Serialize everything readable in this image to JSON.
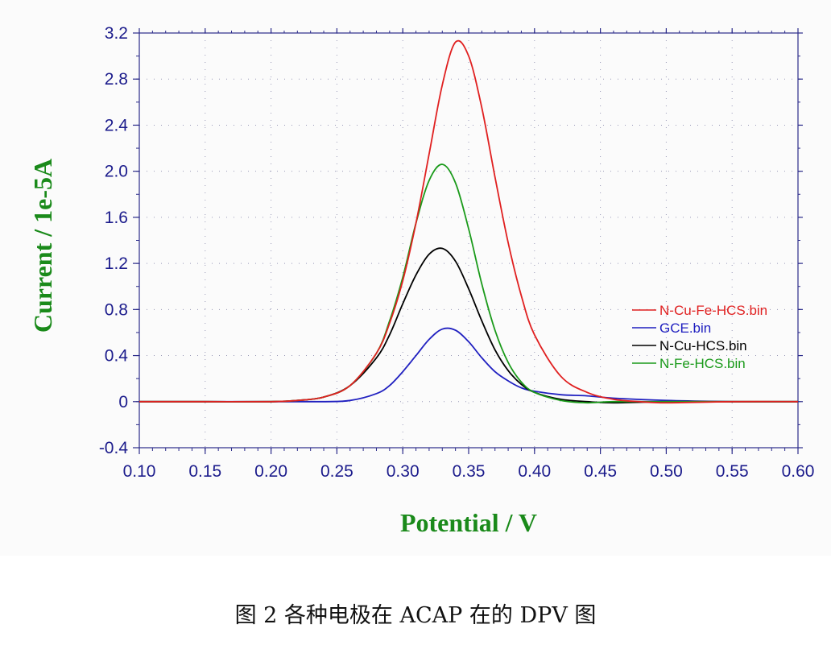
{
  "chart_data": {
    "type": "line",
    "xlabel": "Potential / V",
    "ylabel": "Current / 1e-5A",
    "xlim": [
      0.1,
      0.6
    ],
    "ylim": [
      -0.4,
      3.2
    ],
    "x_ticks": [
      "0.10",
      "0.15",
      "0.20",
      "0.25",
      "0.30",
      "0.35",
      "0.40",
      "0.45",
      "0.50",
      "0.55",
      "0.60"
    ],
    "y_ticks": [
      "-0.4",
      "0",
      "0.4",
      "0.8",
      "1.2",
      "1.6",
      "2.0",
      "2.4",
      "2.8",
      "3.2"
    ],
    "grid": true,
    "legend_position": "right",
    "series": [
      {
        "name": "N-Cu-Fe-HCS.bin",
        "color": "#e02020",
        "x": [
          0.1,
          0.15,
          0.2,
          0.22,
          0.24,
          0.26,
          0.28,
          0.29,
          0.3,
          0.31,
          0.32,
          0.33,
          0.34,
          0.35,
          0.36,
          0.37,
          0.38,
          0.39,
          0.4,
          0.42,
          0.44,
          0.46,
          0.48,
          0.5,
          0.55,
          0.6
        ],
        "y": [
          0.0,
          0.0,
          0.0,
          0.01,
          0.04,
          0.14,
          0.42,
          0.68,
          1.05,
          1.55,
          2.15,
          2.75,
          3.12,
          3.0,
          2.55,
          1.95,
          1.38,
          0.92,
          0.58,
          0.22,
          0.08,
          0.02,
          0.0,
          -0.01,
          0.0,
          0.0
        ]
      },
      {
        "name": "GCE.bin",
        "color": "#2020c0",
        "x": [
          0.1,
          0.15,
          0.2,
          0.24,
          0.26,
          0.28,
          0.29,
          0.3,
          0.31,
          0.32,
          0.33,
          0.34,
          0.35,
          0.36,
          0.37,
          0.38,
          0.39,
          0.4,
          0.42,
          0.44,
          0.46,
          0.5,
          0.55,
          0.6
        ],
        "y": [
          0.0,
          0.0,
          0.0,
          0.0,
          0.01,
          0.07,
          0.14,
          0.26,
          0.4,
          0.54,
          0.63,
          0.62,
          0.52,
          0.38,
          0.26,
          0.18,
          0.12,
          0.09,
          0.06,
          0.05,
          0.03,
          0.01,
          0.0,
          0.0
        ]
      },
      {
        "name": "N-Cu-HCS.bin",
        "color": "#000000",
        "x": [
          0.1,
          0.15,
          0.2,
          0.22,
          0.24,
          0.26,
          0.28,
          0.29,
          0.3,
          0.31,
          0.32,
          0.33,
          0.34,
          0.35,
          0.36,
          0.37,
          0.38,
          0.39,
          0.4,
          0.42,
          0.44,
          0.46,
          0.5,
          0.55,
          0.6
        ],
        "y": [
          0.0,
          0.0,
          0.0,
          0.01,
          0.04,
          0.14,
          0.38,
          0.58,
          0.85,
          1.1,
          1.28,
          1.33,
          1.22,
          0.98,
          0.7,
          0.45,
          0.27,
          0.15,
          0.08,
          0.02,
          0.0,
          -0.01,
          0.0,
          0.0,
          0.0
        ]
      },
      {
        "name": "N-Fe-HCS.bin",
        "color": "#1a9a1a",
        "x": [
          0.1,
          0.15,
          0.2,
          0.22,
          0.24,
          0.26,
          0.28,
          0.29,
          0.3,
          0.31,
          0.32,
          0.33,
          0.34,
          0.35,
          0.36,
          0.37,
          0.38,
          0.39,
          0.4,
          0.42,
          0.44,
          0.46,
          0.5,
          0.55,
          0.6
        ],
        "y": [
          0.0,
          0.0,
          0.0,
          0.01,
          0.04,
          0.14,
          0.42,
          0.7,
          1.08,
          1.55,
          1.92,
          2.06,
          1.9,
          1.5,
          1.02,
          0.62,
          0.34,
          0.17,
          0.08,
          0.01,
          -0.01,
          0.0,
          0.0,
          0.0,
          0.0
        ]
      }
    ]
  },
  "caption": "图 2   各种电极在 ACAP 在的 DPV 图"
}
